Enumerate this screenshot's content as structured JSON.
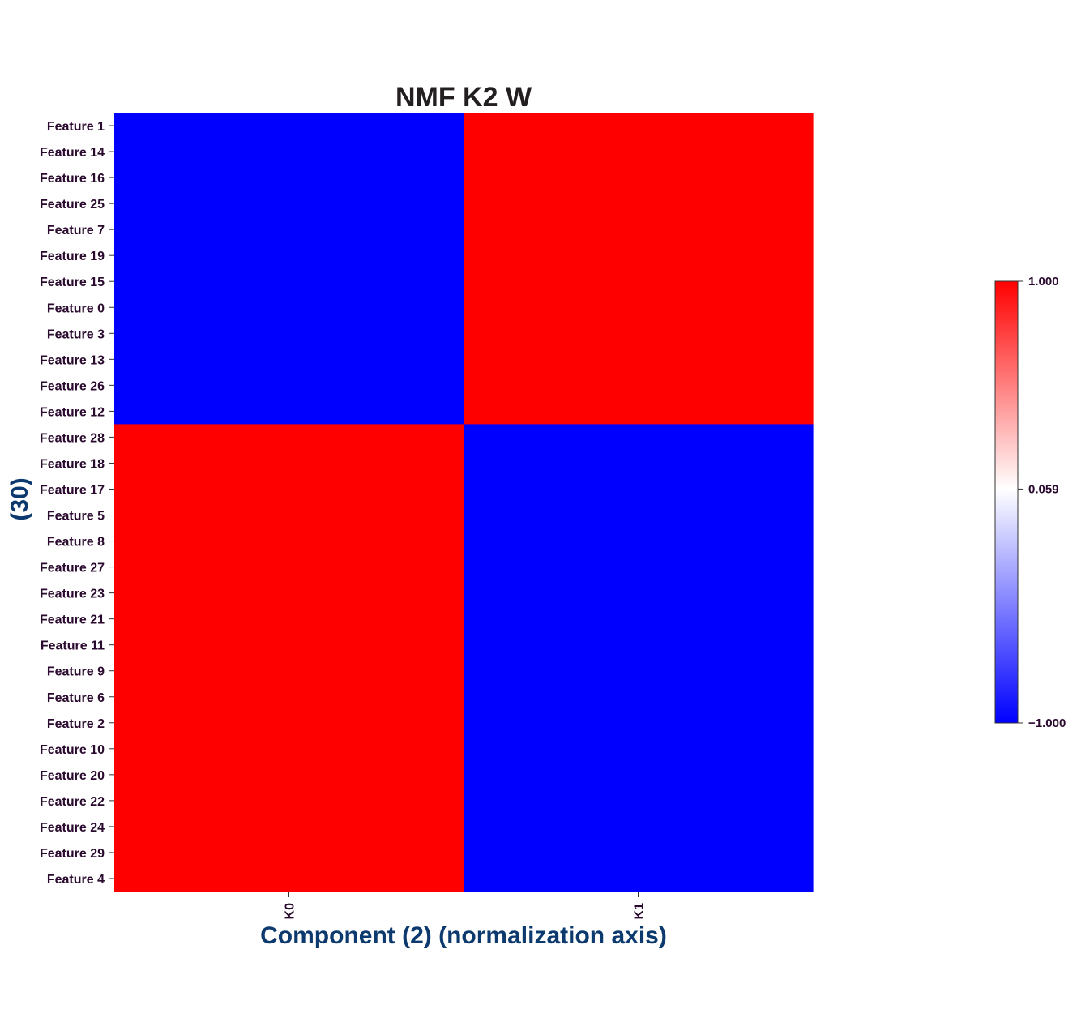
{
  "chart_data": {
    "type": "heatmap",
    "title": "NMF K2 W",
    "xlabel": "Component (2) (normalization axis)",
    "ylabel": "(30)",
    "columns": [
      "K0",
      "K1"
    ],
    "rows": [
      "Feature 1",
      "Feature 14",
      "Feature 16",
      "Feature 25",
      "Feature 7",
      "Feature 19",
      "Feature 15",
      "Feature 0",
      "Feature 3",
      "Feature 13",
      "Feature 26",
      "Feature 12",
      "Feature 28",
      "Feature 18",
      "Feature 17",
      "Feature 5",
      "Feature 8",
      "Feature 27",
      "Feature 23",
      "Feature 21",
      "Feature 11",
      "Feature 9",
      "Feature 6",
      "Feature 2",
      "Feature 10",
      "Feature 20",
      "Feature 22",
      "Feature 24",
      "Feature 29",
      "Feature 4"
    ],
    "values": [
      [
        -1,
        1
      ],
      [
        -1,
        1
      ],
      [
        -1,
        1
      ],
      [
        -1,
        1
      ],
      [
        -1,
        1
      ],
      [
        -1,
        1
      ],
      [
        -1,
        1
      ],
      [
        -1,
        1
      ],
      [
        -1,
        1
      ],
      [
        -1,
        1
      ],
      [
        -1,
        1
      ],
      [
        -1,
        1
      ],
      [
        1,
        -1
      ],
      [
        1,
        -1
      ],
      [
        1,
        -1
      ],
      [
        1,
        -1
      ],
      [
        1,
        -1
      ],
      [
        1,
        -1
      ],
      [
        1,
        -1
      ],
      [
        1,
        -1
      ],
      [
        1,
        -1
      ],
      [
        1,
        -1
      ],
      [
        1,
        -1
      ],
      [
        1,
        -1
      ],
      [
        1,
        -1
      ],
      [
        1,
        -1
      ],
      [
        1,
        -1
      ],
      [
        1,
        -1
      ],
      [
        1,
        -1
      ],
      [
        1,
        -1
      ]
    ],
    "colorbar": {
      "min": -1.0,
      "max": 1.0,
      "ticks": [
        1.0,
        0.059,
        -1.0
      ],
      "tick_labels": [
        "1.000",
        "0.059",
        "−1.000"
      ],
      "colors": {
        "low": "#0000ff",
        "mid": "#ffffff",
        "high": "#ff0000"
      }
    },
    "axis_title_color": "#0d3a6e"
  }
}
